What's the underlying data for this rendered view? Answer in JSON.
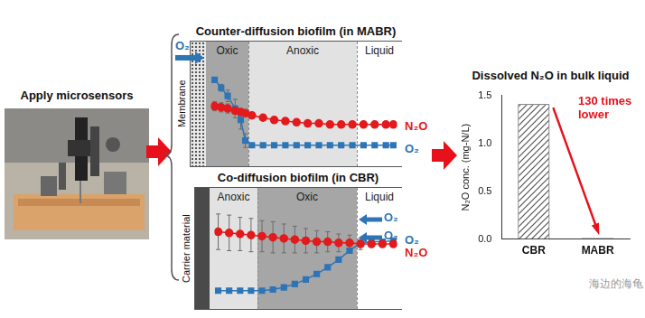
{
  "photo_label": "Apply microsensors",
  "profiles": [
    {
      "title": "Counter-diffusion biofilm (in MABR)",
      "support": "Membrane",
      "zones": [
        "Oxic",
        "Anoxic",
        "Liquid"
      ],
      "inputs": [
        "O₂"
      ],
      "chart_data": {
        "type": "line",
        "x": [
          2,
          5.5,
          9,
          13,
          16,
          18.5,
          22,
          28,
          34,
          40,
          46,
          52,
          58,
          64,
          70,
          76,
          82,
          88,
          94,
          98
        ],
        "xlim": [
          0,
          100
        ],
        "ylim": [
          0,
          100
        ],
        "tick_labels": false,
        "grid": false,
        "series": [
          {
            "name": "N₂O",
            "color": "#e31a1c",
            "marker": "circle",
            "values": [
              48,
              47,
              46,
              44,
              43,
              42,
              40,
              38,
              36,
              35,
              34,
              33,
              33,
              32,
              32,
              32,
              32,
              32,
              32,
              32
            ],
            "errors": [
              4,
              4,
              4,
              3,
              3,
              3,
              2,
              2,
              1,
              1,
              1,
              1,
              0,
              0,
              0,
              0,
              0,
              0,
              0,
              0
            ]
          },
          {
            "name": "O₂",
            "color": "#2e75b6",
            "marker": "square",
            "values": [
              71,
              64,
              57,
              46,
              36,
              18,
              14,
              14,
              14,
              14,
              14,
              14,
              14,
              14,
              14,
              14,
              14,
              14,
              14,
              14
            ],
            "errors": [
              2,
              3,
              5,
              8,
              8,
              6,
              0,
              0,
              0,
              0,
              0,
              0,
              0,
              0,
              0,
              0,
              0,
              0,
              0,
              0
            ]
          }
        ]
      }
    },
    {
      "title": "Co-diffusion biofilm (in CBR)",
      "support": "Carrier material",
      "zones": [
        "Anoxic",
        "Oxic",
        "Liquid"
      ],
      "inputs": [
        "O₂",
        "O₂"
      ],
      "chart_data": {
        "type": "line",
        "x": [
          2,
          8,
          14,
          20,
          26,
          32,
          38,
          44,
          50,
          56,
          62,
          68,
          74,
          80,
          86,
          92,
          98
        ],
        "xlim": [
          0,
          100
        ],
        "ylim": [
          0,
          100
        ],
        "tick_labels": false,
        "grid": false,
        "series": [
          {
            "name": "N₂O",
            "color": "#e31a1c",
            "marker": "circle",
            "values": [
              65,
              64,
              63,
              62,
              61,
              60,
              59,
              58,
              57,
              56,
              56,
              55,
              55,
              54,
              54,
              54,
              54
            ],
            "errors": [
              16,
              16,
              15,
              15,
              14,
              14,
              13,
              12,
              11,
              10,
              9,
              8,
              7,
              5,
              3,
              2,
              1
            ]
          },
          {
            "name": "O₂",
            "color": "#2e75b6",
            "marker": "square",
            "values": [
              12,
              12,
              12,
              12,
              12,
              13,
              15,
              18,
              22,
              27,
              33,
              40,
              48,
              55,
              56,
              56,
              57
            ],
            "errors": [
              0,
              0,
              0,
              0,
              0,
              0,
              1,
              1,
              2,
              2,
              2,
              2,
              2,
              1,
              1,
              1,
              0
            ]
          }
        ]
      }
    }
  ],
  "chart_data": {
    "type": "bar",
    "title": "Dissolved N₂O in bulk liquid",
    "y_label": "N₂O conc. (mg-N/L)",
    "categories": [
      "CBR",
      "MABR"
    ],
    "values": [
      1.41,
      0.011
    ],
    "colors": [
      "#bfbfbf",
      "#404040"
    ],
    "ylim": [
      0,
      1.5
    ],
    "yticks": [
      {
        "value": 0,
        "label": "0.0"
      },
      {
        "value": 0.5,
        "label": "0.5"
      },
      {
        "value": 1,
        "label": "1.0"
      },
      {
        "value": 1.5,
        "label": "1.5"
      }
    ],
    "grid": false,
    "annotations": [
      "130 times lower"
    ]
  },
  "watermark": "海边的海龟"
}
